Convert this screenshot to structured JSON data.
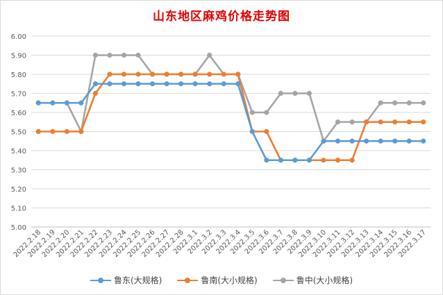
{
  "chart_data": {
    "type": "line",
    "title": "山东地区麻鸡价格走势图",
    "xlabel": "",
    "ylabel": "",
    "ylim": [
      5.0,
      6.0
    ],
    "yticks": [
      "5.00",
      "5.10",
      "5.20",
      "5.30",
      "5.40",
      "5.50",
      "5.60",
      "5.70",
      "5.80",
      "5.90",
      "6.00"
    ],
    "grid": true,
    "legend_position": "bottom",
    "categories": [
      "2022.2.18",
      "2022.2.19",
      "2022.2.20",
      "2022.2.21",
      "2022.2.22",
      "2022.2.23",
      "2022.2.24",
      "2022.2.25",
      "2022.2.26",
      "2022.2.27",
      "2022.2.28",
      "2022.3.1",
      "2022.3.2",
      "2022.3.3",
      "2022.3.4",
      "2022.3.5",
      "2022.3.6",
      "2022.3.7",
      "2022.3.8",
      "2022.3.9",
      "2022.3.10",
      "2022.3.11",
      "2022.3.12",
      "2022.3.13",
      "2022.3.14",
      "2022.3.15",
      "2022.3.16",
      "2022.3.17"
    ],
    "series": [
      {
        "name": "鲁东(大规格)",
        "color": "#5b9bd5",
        "values": [
          5.65,
          5.65,
          5.65,
          5.65,
          5.75,
          5.75,
          5.75,
          5.75,
          5.75,
          5.75,
          5.75,
          5.75,
          5.75,
          5.75,
          5.75,
          5.5,
          5.35,
          5.35,
          5.35,
          5.35,
          5.45,
          5.45,
          5.45,
          5.45,
          5.45,
          5.45,
          5.45,
          5.45
        ]
      },
      {
        "name": "鲁南(大小规格)",
        "color": "#ed7d31",
        "values": [
          5.5,
          5.5,
          5.5,
          5.5,
          5.7,
          5.8,
          5.8,
          5.8,
          5.8,
          5.8,
          5.8,
          5.8,
          5.8,
          5.8,
          5.8,
          5.5,
          5.5,
          5.35,
          5.35,
          5.35,
          5.35,
          5.35,
          5.35,
          5.55,
          5.55,
          5.55,
          5.55,
          5.55
        ]
      },
      {
        "name": "鲁中(大小规格)",
        "color": "#a5a5a5",
        "values": [
          5.65,
          5.65,
          5.65,
          5.5,
          5.9,
          5.9,
          5.9,
          5.9,
          5.8,
          5.8,
          5.8,
          5.8,
          5.9,
          5.8,
          5.8,
          5.6,
          5.6,
          5.7,
          5.7,
          5.7,
          5.45,
          5.55,
          5.55,
          5.55,
          5.65,
          5.65,
          5.65,
          5.65
        ]
      }
    ]
  }
}
